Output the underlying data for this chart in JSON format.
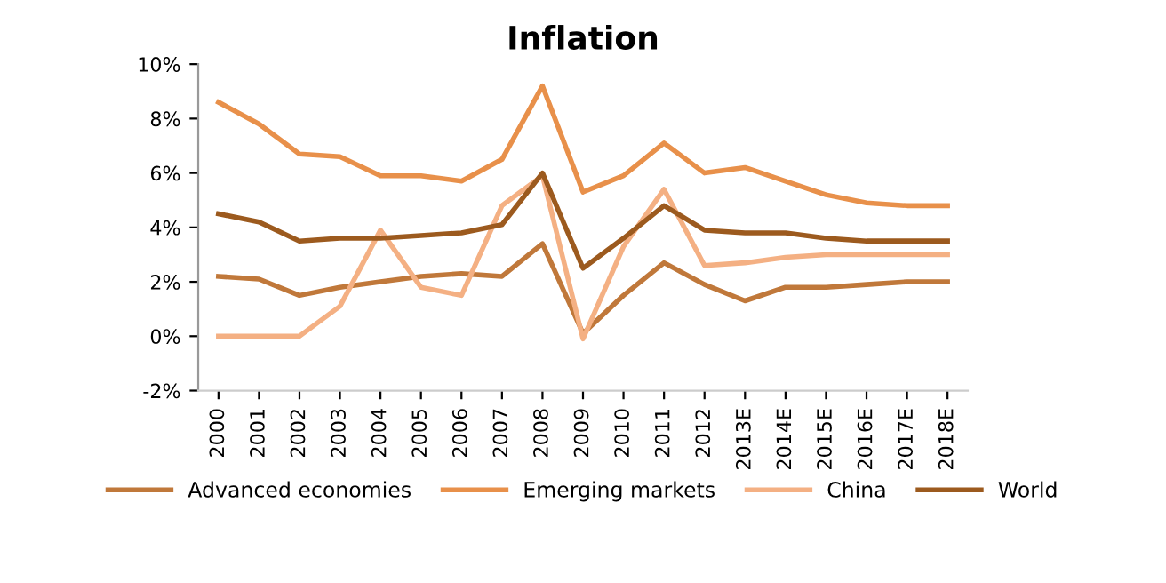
{
  "chart_data": {
    "type": "line",
    "title": "Inflation",
    "categories": [
      "2000",
      "2001",
      "2002",
      "2003",
      "2004",
      "2005",
      "2006",
      "2007",
      "2008",
      "2009",
      "2010",
      "2011",
      "2012",
      "2013E",
      "2014E",
      "2015E",
      "2016E",
      "2017E",
      "2018E"
    ],
    "series": [
      {
        "name": "Advanced economies",
        "color": "#c0783a",
        "values": [
          2.2,
          2.1,
          1.5,
          1.8,
          2.0,
          2.2,
          2.3,
          2.2,
          3.4,
          0.1,
          1.5,
          2.7,
          1.9,
          1.3,
          1.8,
          1.8,
          1.9,
          2.0,
          2.0
        ]
      },
      {
        "name": "Emerging markets",
        "color": "#e8904a",
        "values": [
          8.6,
          7.8,
          6.7,
          6.6,
          5.9,
          5.9,
          5.7,
          6.5,
          9.2,
          5.3,
          5.9,
          7.1,
          6.0,
          6.2,
          5.7,
          5.2,
          4.9,
          4.8,
          4.8
        ]
      },
      {
        "name": "China",
        "color": "#f4b083",
        "values": [
          0,
          0,
          0,
          1.1,
          3.9,
          1.8,
          1.5,
          4.8,
          5.9,
          -0.1,
          3.3,
          5.4,
          2.6,
          2.7,
          2.9,
          3.0,
          3.0,
          3.0,
          3.0
        ]
      },
      {
        "name": "World",
        "color": "#9c5a1e",
        "values": [
          4.5,
          4.2,
          3.5,
          3.6,
          3.6,
          3.7,
          3.8,
          4.1,
          6.0,
          2.5,
          3.6,
          4.8,
          3.9,
          3.8,
          3.8,
          3.6,
          3.5,
          3.5,
          3.5
        ]
      }
    ],
    "ylim": [
      -2,
      10
    ],
    "yticks": [
      {
        "value": -2,
        "label": "-2%"
      },
      {
        "value": 0,
        "label": "0%"
      },
      {
        "value": 2,
        "label": "2%"
      },
      {
        "value": 4,
        "label": "4%"
      },
      {
        "value": 6,
        "label": "6%"
      },
      {
        "value": 8,
        "label": "8%"
      },
      {
        "value": 10,
        "label": "10%"
      }
    ],
    "legend": "bottom",
    "grid": false,
    "marker": "none",
    "line_style": "solid"
  }
}
